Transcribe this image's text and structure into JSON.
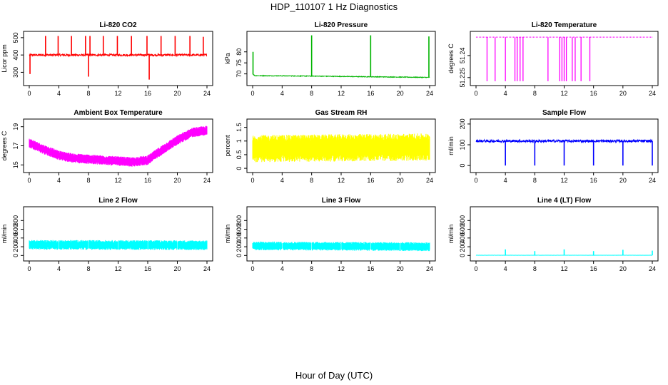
{
  "title": "HDP_110107  1 Hz Diagnostics",
  "xlabel": "Hour of Day (UTC)",
  "chart_data": [
    {
      "type": "line",
      "title": "Li-820 CO2",
      "ylabel": "Licor ppm",
      "xlim": [
        0,
        24
      ],
      "ylim": [
        240,
        520
      ],
      "yticks": [
        300,
        400,
        500
      ],
      "xticks": [
        0,
        4,
        8,
        12,
        16,
        20,
        24
      ],
      "color": "#ff0000",
      "signal": {
        "kind": "spiky",
        "base": 400,
        "noise": 6,
        "events": [
          {
            "x": 0.1,
            "y": 290
          },
          {
            "x": 2.2,
            "y": 510
          },
          {
            "x": 3.9,
            "y": 510
          },
          {
            "x": 5.7,
            "y": 510
          },
          {
            "x": 7.6,
            "y": 510
          },
          {
            "x": 8.0,
            "y": 275
          },
          {
            "x": 8.2,
            "y": 510
          },
          {
            "x": 10.0,
            "y": 510
          },
          {
            "x": 11.9,
            "y": 510
          },
          {
            "x": 13.8,
            "y": 510
          },
          {
            "x": 15.9,
            "y": 510
          },
          {
            "x": 16.2,
            "y": 258
          },
          {
            "x": 17.8,
            "y": 510
          },
          {
            "x": 19.7,
            "y": 510
          },
          {
            "x": 21.7,
            "y": 510
          },
          {
            "x": 23.5,
            "y": 505
          }
        ]
      }
    },
    {
      "type": "line",
      "title": "Li-820 Pressure",
      "ylabel": "kPa",
      "xlim": [
        0,
        24
      ],
      "ylim": [
        66,
        88
      ],
      "yticks": [
        70,
        75,
        80
      ],
      "xticks": [
        0,
        4,
        8,
        12,
        16,
        20,
        24
      ],
      "color": "#00b400",
      "signal": {
        "kind": "drift",
        "points": [
          [
            0,
            70
          ],
          [
            0.3,
            69.2
          ],
          [
            8,
            69
          ],
          [
            16,
            68.7
          ],
          [
            24,
            68.4
          ]
        ],
        "noise": 0.15,
        "events": [
          {
            "x": 0.05,
            "y": 80
          },
          {
            "x": 8.0,
            "y": 87.5
          },
          {
            "x": 16.0,
            "y": 87.5
          },
          {
            "x": 23.9,
            "y": 87
          }
        ]
      }
    },
    {
      "type": "line",
      "title": "Li-820 Temperature",
      "ylabel": "degrees C",
      "xlim": [
        0,
        24
      ],
      "ylim": [
        51.2215,
        51.2545
      ],
      "yticks": [
        51.225,
        51.24
      ],
      "xticks": [
        0,
        4,
        8,
        12,
        16,
        20,
        24
      ],
      "color": "#ff00ff",
      "signal": {
        "kind": "steps",
        "base": 51.2525,
        "drop": 51.2225,
        "drops": [
          1.5,
          2.6,
          4.0,
          5.3,
          5.6,
          6.0,
          6.4,
          9.8,
          11.4,
          11.7,
          12.0,
          12.3,
          13.1,
          13.5,
          14.3,
          15.5
        ]
      }
    },
    {
      "type": "line",
      "title": "Ambient Box Temperature",
      "ylabel": "degrees C",
      "xlim": [
        0,
        24
      ],
      "ylim": [
        14.5,
        19.5
      ],
      "yticks": [
        15,
        17,
        19
      ],
      "xticks": [
        0,
        4,
        8,
        12,
        16,
        20,
        24
      ],
      "color": "#ff00ff",
      "signal": {
        "kind": "band",
        "points": [
          [
            0,
            17.3
          ],
          [
            2,
            16.6
          ],
          [
            4,
            16.0
          ],
          [
            6,
            15.7
          ],
          [
            10,
            15.5
          ],
          [
            14,
            15.3
          ],
          [
            16,
            15.5
          ],
          [
            18,
            16.6
          ],
          [
            20,
            17.6
          ],
          [
            22,
            18.4
          ],
          [
            24,
            18.6
          ]
        ],
        "band": 0.5
      }
    },
    {
      "type": "line",
      "title": "Gas Stream RH",
      "ylabel": "percent",
      "xlim": [
        0,
        24
      ],
      "ylim": [
        -0.05,
        1.7
      ],
      "yticks": [
        0.0,
        0.5,
        1.0,
        1.5
      ],
      "xticks": [
        0,
        4,
        8,
        12,
        16,
        20,
        24
      ],
      "color": "#ffff00",
      "signal": {
        "kind": "band",
        "points": [
          [
            0,
            0.72
          ],
          [
            24,
            0.78
          ]
        ],
        "band": 0.5
      }
    },
    {
      "type": "line",
      "title": "Sample Flow",
      "ylabel": "ml/min",
      "xlim": [
        0,
        24
      ],
      "ylim": [
        -20,
        210
      ],
      "yticks": [
        0,
        100,
        200
      ],
      "xticks": [
        0,
        4,
        8,
        12,
        16,
        20,
        24
      ],
      "color": "#0000ff",
      "signal": {
        "kind": "spiky",
        "base": 118,
        "noise": 6,
        "events": [
          {
            "x": 4.0,
            "y": 0
          },
          {
            "x": 8.0,
            "y": 0
          },
          {
            "x": 12.0,
            "y": 0
          },
          {
            "x": 16.0,
            "y": 0
          },
          {
            "x": 20.0,
            "y": 0
          },
          {
            "x": 24.0,
            "y": 0
          }
        ]
      }
    },
    {
      "type": "line",
      "title": "Line 2 Flow",
      "ylabel": "ml/min",
      "xlim": [
        0,
        24
      ],
      "ylim": [
        -60,
        1050
      ],
      "yticks": [
        0,
        200,
        400,
        600,
        800
      ],
      "xticks": [
        0,
        4,
        8,
        12,
        16,
        20,
        24
      ],
      "color": "#00ffff",
      "signal": {
        "kind": "band",
        "points": [
          [
            0,
            245
          ],
          [
            24,
            235
          ]
        ],
        "band": 110,
        "gaps": [
          4.0,
          8.0,
          12.0,
          16.0,
          20.0
        ]
      }
    },
    {
      "type": "line",
      "title": "Line 3 Flow",
      "ylabel": "ml/min",
      "xlim": [
        0,
        24
      ],
      "ylim": [
        -60,
        1050
      ],
      "yticks": [
        0,
        200,
        400,
        600,
        800
      ],
      "xticks": [
        0,
        4,
        8,
        12,
        16,
        20,
        24
      ],
      "color": "#00ffff",
      "signal": {
        "kind": "band",
        "points": [
          [
            0,
            220
          ],
          [
            24,
            200
          ]
        ],
        "band": 100,
        "gaps": [
          4.0,
          8.0,
          12.0,
          16.0,
          20.0
        ]
      }
    },
    {
      "type": "line",
      "title": "Line 4 (LT) Flow",
      "ylabel": "ml/min",
      "xlim": [
        0,
        24
      ],
      "ylim": [
        -60,
        1050
      ],
      "yticks": [
        0,
        200,
        400,
        600,
        800
      ],
      "xticks": [
        0,
        4,
        8,
        12,
        16,
        20,
        24
      ],
      "color": "#00ffff",
      "signal": {
        "kind": "spiky",
        "base": 5,
        "noise": 2,
        "events": [
          {
            "x": 4.0,
            "y": 140
          },
          {
            "x": 8.0,
            "y": 100
          },
          {
            "x": 12.0,
            "y": 140
          },
          {
            "x": 16.0,
            "y": 100
          },
          {
            "x": 20.0,
            "y": 130
          },
          {
            "x": 24.0,
            "y": 110
          }
        ]
      }
    }
  ]
}
